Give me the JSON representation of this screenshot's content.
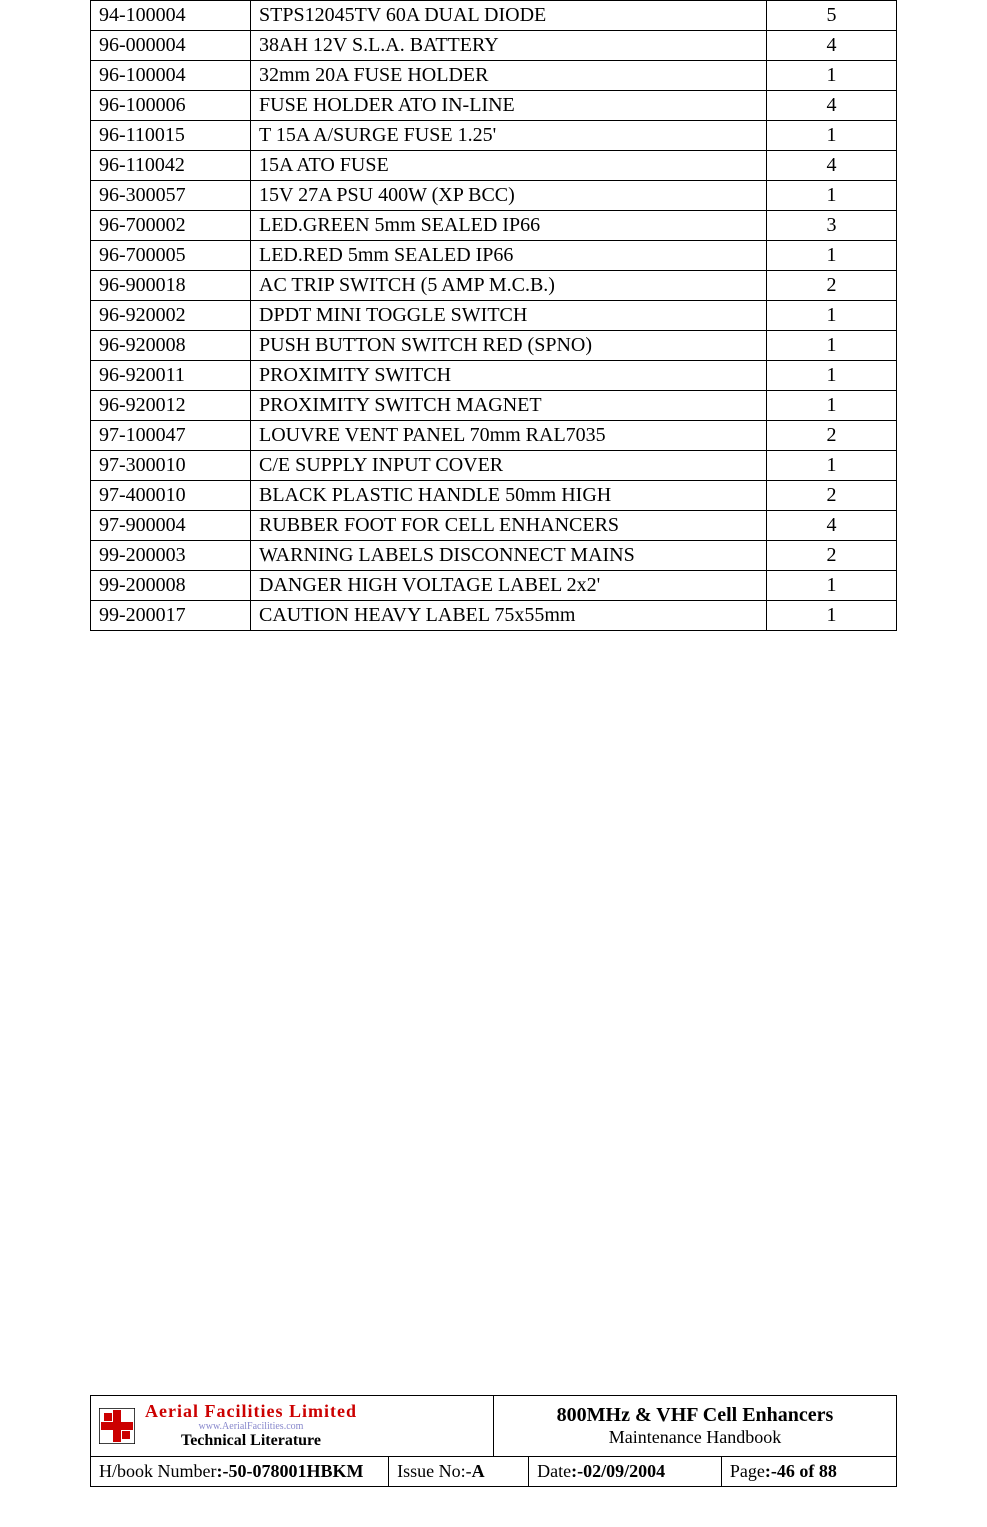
{
  "table": {
    "rows": [
      {
        "part": "94-100004",
        "desc": "STPS12045TV 60A DUAL DIODE",
        "qty": "5"
      },
      {
        "part": "96-000004",
        "desc": "38AH 12V S.L.A. BATTERY",
        "qty": "4"
      },
      {
        "part": "96-100004",
        "desc": "32mm 20A FUSE HOLDER",
        "qty": "1"
      },
      {
        "part": "96-100006",
        "desc": "FUSE HOLDER ATO IN-LINE",
        "qty": "4"
      },
      {
        "part": "96-110015",
        "desc": "T 15A A/SURGE FUSE 1.25'",
        "qty": "1"
      },
      {
        "part": "96-110042",
        "desc": "15A ATO FUSE",
        "qty": "4"
      },
      {
        "part": "96-300057",
        "desc": "15V 27A PSU 400W (XP BCC)",
        "qty": "1"
      },
      {
        "part": "96-700002",
        "desc": "LED.GREEN 5mm SEALED IP66",
        "qty": "3"
      },
      {
        "part": "96-700005",
        "desc": "LED.RED 5mm SEALED IP66",
        "qty": "1"
      },
      {
        "part": "96-900018",
        "desc": "AC TRIP SWITCH (5 AMP M.C.B.)",
        "qty": "2"
      },
      {
        "part": "96-920002",
        "desc": "DPDT MINI TOGGLE SWITCH",
        "qty": "1"
      },
      {
        "part": "96-920008",
        "desc": "PUSH BUTTON SWITCH RED (SPNO)",
        "qty": "1"
      },
      {
        "part": "96-920011",
        "desc": "PROXIMITY SWITCH",
        "qty": "1"
      },
      {
        "part": "96-920012",
        "desc": "PROXIMITY SWITCH MAGNET",
        "qty": "1"
      },
      {
        "part": "97-100047",
        "desc": "LOUVRE VENT PANEL 70mm RAL7035",
        "qty": "2"
      },
      {
        "part": "97-300010",
        "desc": "C/E SUPPLY INPUT COVER",
        "qty": "1"
      },
      {
        "part": "97-400010",
        "desc": "BLACK PLASTIC HANDLE 50mm HIGH",
        "qty": "2"
      },
      {
        "part": "97-900004",
        "desc": "RUBBER FOOT FOR CELL ENHANCERS",
        "qty": "4"
      },
      {
        "part": "99-200003",
        "desc": "WARNING LABELS DISCONNECT MAINS",
        "qty": "2"
      },
      {
        "part": "99-200008",
        "desc": "DANGER HIGH VOLTAGE LABEL 2x2'",
        "qty": "1"
      },
      {
        "part": "99-200017",
        "desc": "CAUTION HEAVY LABEL 75x55mm",
        "qty": "1"
      }
    ]
  },
  "footer": {
    "logo": {
      "company": "Aerial  Facilities  Limited",
      "url": "www.AerialFacilities.com",
      "sub": "Technical Literature",
      "colors": {
        "red": "#cc0000",
        "border": "#000000",
        "white": "#ffffff"
      }
    },
    "title": "800MHz & VHF Cell Enhancers",
    "subtitle": "Maintenance Handbook",
    "hbook_label": "H/book Number",
    "hbook_value": ":-50-078001HBKM",
    "issue_label": "Issue No:-",
    "issue_value": "A",
    "date_label": "Date",
    "date_value": ":-02/09/2004",
    "page_label": "Page",
    "page_value": ":-46 of 88"
  }
}
